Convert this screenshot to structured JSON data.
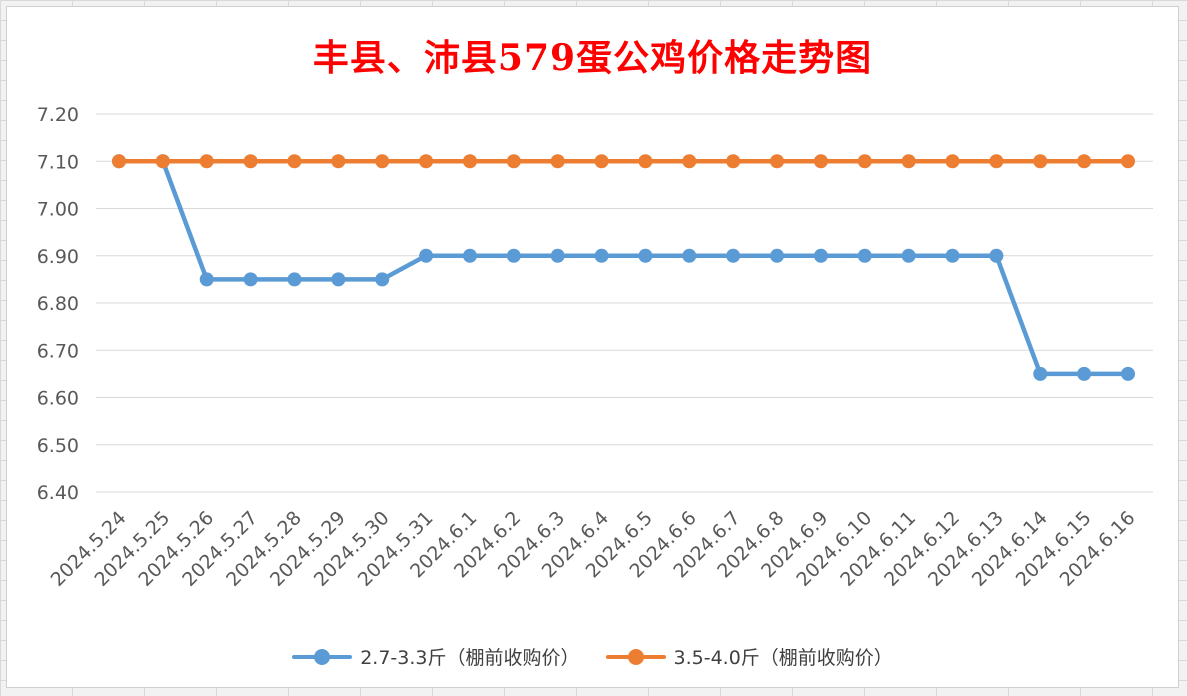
{
  "chart_data": {
    "type": "line",
    "title": "丰县、沛县579蛋公鸡价格走势图",
    "xlabel": "",
    "ylabel": "",
    "categories": [
      "2024.5.24",
      "2024.5.25",
      "2024.5.26",
      "2024.5.27",
      "2024.5.28",
      "2024.5.29",
      "2024.5.30",
      "2024.5.31",
      "2024.6.1",
      "2024.6.2",
      "2024.6.3",
      "2024.6.4",
      "2024.6.5",
      "2024.6.6",
      "2024.6.7",
      "2024.6.8",
      "2024.6.9",
      "2024.6.10",
      "2024.6.11",
      "2024.6.12",
      "2024.6.13",
      "2024.6.14",
      "2024.6.15",
      "2024.6.16"
    ],
    "ylim": [
      6.4,
      7.2
    ],
    "yticks": [
      "6.40",
      "6.50",
      "6.60",
      "6.70",
      "6.80",
      "6.90",
      "7.00",
      "7.10",
      "7.20"
    ],
    "grid": true,
    "legend_position": "bottom",
    "series": [
      {
        "name": "2.7-3.3斤（棚前收购价）",
        "color": "#5b9bd5",
        "values": [
          7.1,
          7.1,
          6.85,
          6.85,
          6.85,
          6.85,
          6.85,
          6.9,
          6.9,
          6.9,
          6.9,
          6.9,
          6.9,
          6.9,
          6.9,
          6.9,
          6.9,
          6.9,
          6.9,
          6.9,
          6.9,
          6.65,
          6.65,
          6.65
        ]
      },
      {
        "name": "3.5-4.0斤（棚前收购价）",
        "color": "#ed7d31",
        "values": [
          7.1,
          7.1,
          7.1,
          7.1,
          7.1,
          7.1,
          7.1,
          7.1,
          7.1,
          7.1,
          7.1,
          7.1,
          7.1,
          7.1,
          7.1,
          7.1,
          7.1,
          7.1,
          7.1,
          7.1,
          7.1,
          7.1,
          7.1,
          7.1
        ]
      }
    ]
  }
}
